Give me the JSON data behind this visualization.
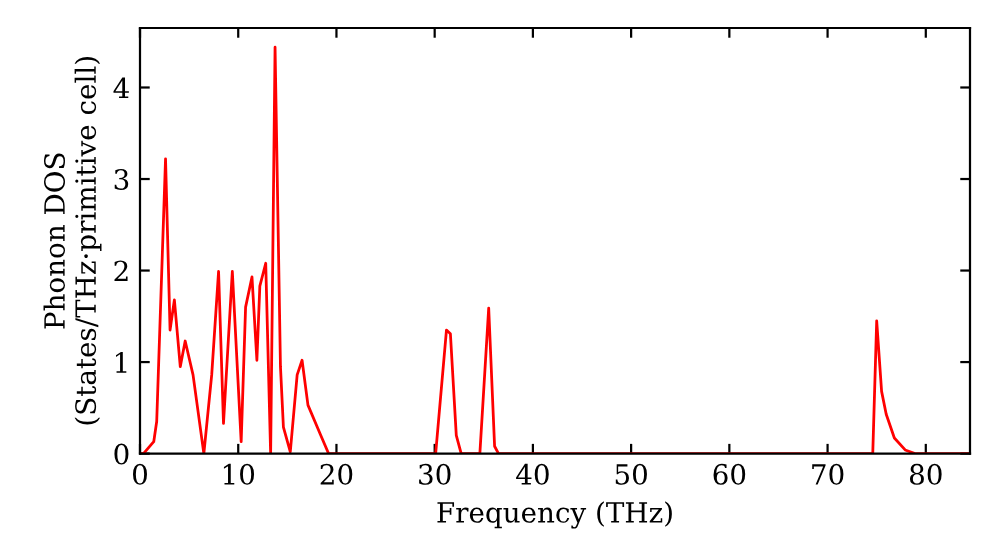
{
  "chart_data": {
    "type": "line",
    "xlabel": "Frequency (THz)",
    "ylabel": "Phonon DOS\n(States/THz·primitive cell)",
    "xlim": [
      0,
      84.5
    ],
    "ylim": [
      0,
      4.65
    ],
    "xticks": [
      0,
      10,
      20,
      30,
      40,
      50,
      60,
      70,
      80
    ],
    "yticks": [
      0,
      1,
      2,
      3,
      4
    ],
    "grid": false,
    "legend": false,
    "marker": "none",
    "line_style": "solid",
    "series": [
      {
        "color": "#ff0000",
        "x": [
          0,
          0.35,
          1.4,
          1.7,
          2.6,
          3.06,
          3.5,
          4.1,
          4.6,
          5.4,
          6.5,
          7.3,
          8.0,
          8.5,
          9.4,
          10.3,
          10.75,
          11.4,
          11.9,
          12.2,
          12.8,
          13.3,
          13.75,
          14.3,
          14.6,
          15.3,
          16.0,
          16.5,
          17.1,
          18.4,
          19.2,
          30.1,
          31.2,
          31.6,
          32.2,
          32.7,
          34.6,
          35.5,
          36.1,
          36.5,
          74.6,
          75.0,
          75.5,
          75.97,
          76.8,
          77.9,
          78.9,
          84.5
        ],
        "values": [
          0,
          0,
          0.13,
          0.35,
          3.22,
          1.35,
          1.68,
          0.95,
          1.23,
          0.86,
          0,
          0.86,
          1.99,
          0.33,
          1.99,
          0.13,
          1.6,
          1.93,
          1.02,
          1.83,
          2.08,
          0,
          4.44,
          0.95,
          0.29,
          0.02,
          0.86,
          1.02,
          0.53,
          0.2,
          0,
          0,
          1.35,
          1.31,
          0.2,
          0,
          0,
          1.59,
          0.08,
          0,
          0,
          1.45,
          0.68,
          0.43,
          0.17,
          0.04,
          0,
          0
        ]
      }
    ]
  }
}
